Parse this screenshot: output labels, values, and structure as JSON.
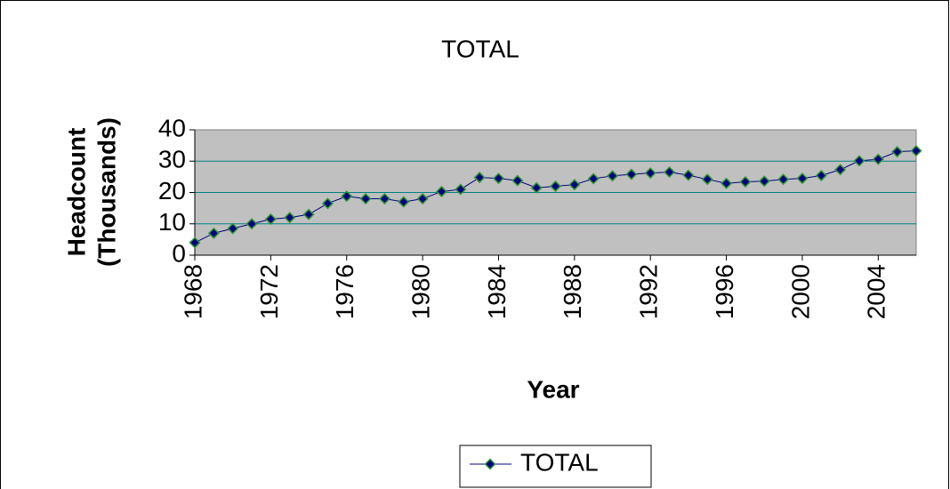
{
  "chart_data": {
    "type": "line",
    "title": "TOTAL",
    "x_label": "Year",
    "y_label": [
      "Headcount",
      "(Thousands)"
    ],
    "x": [
      1968,
      1969,
      1970,
      1971,
      1972,
      1973,
      1974,
      1975,
      1976,
      1977,
      1978,
      1979,
      1980,
      1981,
      1982,
      1983,
      1984,
      1985,
      1986,
      1987,
      1988,
      1989,
      1990,
      1991,
      1992,
      1993,
      1994,
      1995,
      1996,
      1997,
      1998,
      1999,
      2000,
      2001,
      2002,
      2003,
      2004,
      2005,
      2006
    ],
    "series": [
      {
        "name": "TOTAL",
        "color": "#000080",
        "values": [
          4,
          7,
          8.5,
          10,
          11.5,
          12,
          13,
          16.5,
          18.8,
          18,
          18,
          17,
          18,
          20.3,
          21,
          24.8,
          24.5,
          23.8,
          21.5,
          22,
          22.5,
          24.4,
          25.3,
          25.8,
          26.2,
          26.5,
          25.5,
          24.2,
          22.9,
          23.4,
          23.6,
          24.2,
          24.5,
          25.4,
          27.3,
          30.1,
          30.6,
          33,
          33.3
        ]
      }
    ],
    "xlim": [
      1968,
      2006
    ],
    "xticks": [
      1968,
      1972,
      1976,
      1980,
      1984,
      1988,
      1992,
      1996,
      2000,
      2004
    ],
    "ylim": [
      0,
      40
    ],
    "yticks": [
      0,
      10,
      20,
      30,
      40
    ],
    "grid": true,
    "legend": "bottom"
  }
}
